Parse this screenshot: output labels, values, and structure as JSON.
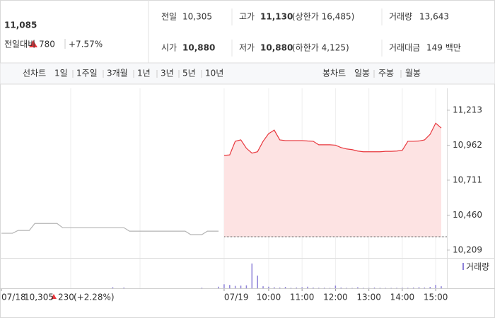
{
  "quote": {
    "price": "11,085",
    "change_label": "전일대비",
    "change": "780",
    "rate": "+7.57%",
    "stats": [
      {
        "label": "전일",
        "value": "10,305"
      },
      {
        "label": "고가",
        "value": "11,130",
        "note": "(상한가 16,485)"
      },
      {
        "label": "거래량",
        "value": "13,643"
      },
      {
        "label": "시가",
        "value": "10,880"
      },
      {
        "label": "저가",
        "value": "10,880",
        "note": "(하한가 4,125)"
      },
      {
        "label": "거래대금",
        "value": "149 백만"
      }
    ]
  },
  "tabs": {
    "line_label": "선차트",
    "line": [
      "1일",
      "1주일",
      "3개월",
      "1년",
      "3년",
      "5년",
      "10년"
    ],
    "candle_label": "봉차트",
    "candle": [
      "일봉",
      "주봉",
      "월봉"
    ]
  },
  "chart_data": {
    "type": "line",
    "categories": [
      "07/18",
      null,
      null,
      null,
      null,
      null,
      null,
      null,
      null,
      null,
      null,
      null,
      null,
      null,
      null,
      null,
      null,
      null,
      null,
      null,
      null,
      null,
      null,
      null,
      null,
      null,
      null,
      null,
      null,
      null,
      null,
      null,
      null,
      null,
      null,
      null,
      null,
      null,
      null,
      null,
      "07/19",
      null,
      null,
      null,
      null,
      null,
      null,
      null,
      "10:00",
      null,
      null,
      null,
      null,
      null,
      "11:00",
      null,
      null,
      null,
      null,
      null,
      "12:00",
      null,
      null,
      null,
      null,
      null,
      "13:00",
      null,
      null,
      null,
      null,
      null,
      "14:00",
      null,
      null,
      null,
      null,
      null,
      "15:00",
      null
    ],
    "series": [
      {
        "color": "#b4b4b4",
        "values": [
          10330,
          10330,
          10330,
          10350,
          10350,
          10350,
          10400,
          10400,
          10400,
          10400,
          10400,
          10370,
          10370,
          10370,
          10370,
          10370,
          10370,
          10370,
          10370,
          10370,
          10370,
          10370,
          10370,
          10345,
          10345,
          10345,
          10345,
          10345,
          10345,
          10345,
          10345,
          10345,
          10345,
          10345,
          10320,
          10320,
          10320,
          10345,
          10345,
          10345,
          null,
          null,
          null,
          null,
          null,
          null,
          null,
          null,
          null,
          null,
          null,
          null,
          null,
          null,
          null,
          null,
          null,
          null,
          null,
          null,
          null,
          null,
          null,
          null,
          null,
          null,
          null,
          null,
          null,
          null,
          null,
          null,
          null,
          null,
          null,
          null,
          null,
          null,
          null,
          null
        ]
      },
      {
        "color": "#e8373d",
        "values": [
          null,
          null,
          null,
          null,
          null,
          null,
          null,
          null,
          null,
          null,
          null,
          null,
          null,
          null,
          null,
          null,
          null,
          null,
          null,
          null,
          null,
          null,
          null,
          null,
          null,
          null,
          null,
          null,
          null,
          null,
          null,
          null,
          null,
          null,
          null,
          null,
          null,
          null,
          null,
          null,
          10889,
          10892,
          10990,
          11000,
          10940,
          10905,
          10915,
          10990,
          11045,
          11070,
          11000,
          10995,
          10995,
          10995,
          10995,
          10992,
          10990,
          10965,
          10965,
          10965,
          10962,
          10945,
          10935,
          10930,
          10920,
          10915,
          10915,
          10915,
          10915,
          10918,
          10918,
          10920,
          10925,
          10990,
          10990,
          10992,
          11000,
          11040,
          11120,
          11085
        ]
      },
      {
        "name": "거래량",
        "axis": "y2",
        "color": "#8c80d8",
        "values": [
          0,
          0,
          0,
          0,
          0,
          0,
          0,
          0,
          0,
          0,
          0,
          0,
          0,
          0,
          0,
          0,
          0,
          0,
          0,
          0,
          80,
          0,
          60,
          0,
          0,
          0,
          0,
          0,
          0,
          0,
          0,
          0,
          0,
          0,
          0,
          0,
          50,
          0,
          0,
          120,
          300,
          250,
          180,
          200,
          220,
          1850,
          950,
          150,
          120,
          80,
          60,
          100,
          40,
          60,
          80,
          120,
          60,
          40,
          50,
          30,
          200,
          60,
          40,
          30,
          80,
          40,
          30,
          60,
          40,
          30,
          30,
          40,
          50,
          40,
          60,
          80,
          60,
          100,
          250,
          150
        ]
      }
    ],
    "baseline": 10305,
    "ylim": [
      10168,
      11370
    ],
    "yticks": [
      {
        "value": 10209,
        "label": "10,209"
      },
      {
        "value": 10460,
        "label": "10,460"
      },
      {
        "value": 10711,
        "label": "10,711"
      },
      {
        "value": 10962,
        "label": "10,962"
      },
      {
        "value": 11213,
        "label": "11,213"
      }
    ],
    "y2lim": [
      0,
      2000
    ],
    "grid": true,
    "annotation": {
      "price": "10,305",
      "change": "230",
      "rate": "(+2.28%)"
    }
  }
}
